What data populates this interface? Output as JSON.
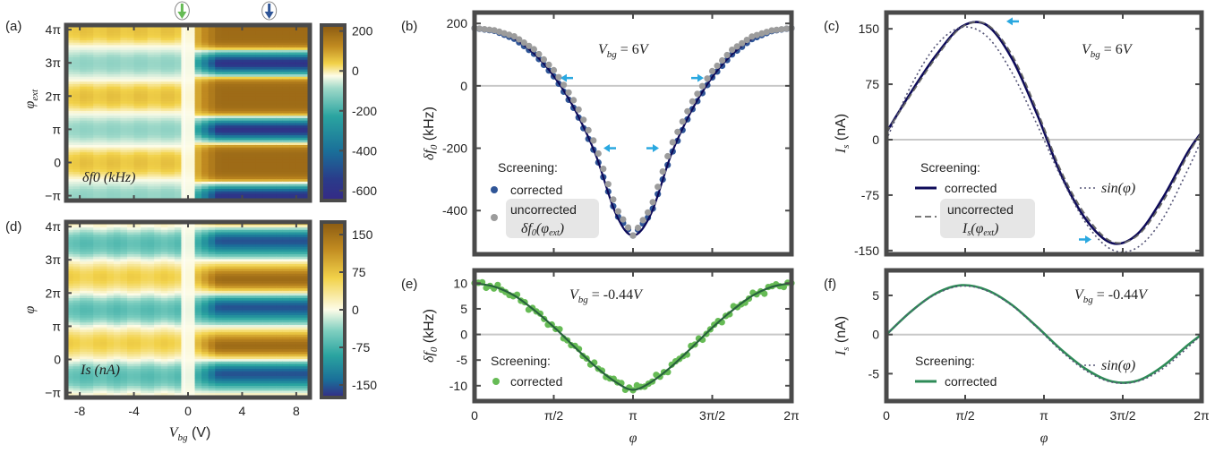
{
  "panels": {
    "a": {
      "label": "(a)",
      "ylabel": "φext",
      "overlay": "δf0 (kHz)"
    },
    "b": {
      "label": "(b)"
    },
    "c": {
      "label": "(c)"
    },
    "d": {
      "label": "(d)",
      "ylabel": "φ",
      "overlay": "Is (nA)"
    },
    "e": {
      "label": "(e)"
    },
    "f": {
      "label": "(f)"
    }
  },
  "colors": {
    "corrected_dark": "#0d0a59",
    "corrected_blue": "#2f5597",
    "uncorrected": "#9c9c9c",
    "green": "#66bb55",
    "green_line": "#2e8b57",
    "arrow": "#2aa8e0",
    "frame": "#4a4a4a",
    "zero_line": "#c8c8c8"
  },
  "chart_data": [
    {
      "panel": "a",
      "type": "heatmap",
      "x_label": "Vbg (V)",
      "y_label": "φext",
      "xlim": [
        -9,
        9
      ],
      "ylim": [
        -3.6,
        13.0
      ],
      "x_ticks": [
        "-8",
        "-4",
        "0",
        "4",
        "8"
      ],
      "x_tick_values": [
        -8,
        -4,
        0,
        4,
        8
      ],
      "y_ticks": [
        "−π",
        "0",
        "π",
        "2π",
        "3π",
        "4π"
      ],
      "y_tick_values": [
        -3.1416,
        0,
        3.1416,
        6.2832,
        9.4248,
        12.5664
      ],
      "colorbar": {
        "ticks": [
          "200",
          "0",
          "-200",
          "-400",
          "-600"
        ],
        "tick_values": [
          200,
          0,
          -200,
          -400,
          -600
        ],
        "range": [
          -650,
          230
        ]
      },
      "markers": [
        {
          "x": -0.44,
          "color": "#66bb55"
        },
        {
          "x": 6,
          "color": "#2f5597"
        }
      ],
      "annotation": "δf0 (kHz)"
    },
    {
      "panel": "d",
      "type": "heatmap",
      "x_label": "Vbg (V)",
      "y_label": "φ",
      "xlim": [
        -9,
        9
      ],
      "ylim": [
        -3.6,
        13.0
      ],
      "x_ticks": [
        "-8",
        "-4",
        "0",
        "4",
        "8"
      ],
      "x_tick_values": [
        -8,
        -4,
        0,
        4,
        8
      ],
      "y_ticks": [
        "−π",
        "0",
        "π",
        "2π",
        "3π",
        "4π"
      ],
      "y_tick_values": [
        -3.1416,
        0,
        3.1416,
        6.2832,
        9.4248,
        12.5664
      ],
      "colorbar": {
        "ticks": [
          "150",
          "75",
          "0",
          "-75",
          "-150"
        ],
        "tick_values": [
          150,
          75,
          0,
          -75,
          -150
        ],
        "range": [
          -175,
          175
        ]
      },
      "annotation": "Is (nA)"
    },
    {
      "panel": "b",
      "type": "line",
      "annotation": "Vbg = 6V",
      "y_label": "δf0 (kHz)",
      "xlim": [
        0,
        6.2832
      ],
      "ylim": [
        -540,
        235
      ],
      "y_ticks": [
        "200",
        "0",
        "-200",
        "-400"
      ],
      "y_tick_values": [
        200,
        0,
        -200,
        -400
      ],
      "legend_title": "Screening:",
      "legend": [
        "corrected",
        "uncorrected",
        "δf0(φext)"
      ],
      "series": [
        {
          "name": "corrected",
          "x": [
            0,
            0.4,
            0.8,
            1.2,
            1.6,
            2.0,
            2.4,
            2.8,
            3.1416,
            3.5,
            3.9,
            4.3,
            4.7,
            5.1,
            5.5,
            5.9,
            6.2832
          ],
          "y": [
            185,
            176,
            150,
            100,
            25,
            -80,
            -220,
            -410,
            -480,
            -410,
            -220,
            -80,
            25,
            100,
            150,
            176,
            185
          ]
        },
        {
          "name": "uncorrected",
          "x": [
            0,
            0.4,
            0.8,
            1.2,
            1.6,
            2.0,
            2.4,
            2.8,
            3.1416,
            3.5,
            3.9,
            4.3,
            4.7,
            5.1,
            5.5,
            5.9,
            6.2832
          ],
          "y": [
            185,
            178,
            158,
            115,
            45,
            -55,
            -190,
            -390,
            -480,
            -390,
            -190,
            -55,
            45,
            115,
            158,
            178,
            185
          ]
        }
      ]
    },
    {
      "panel": "c",
      "type": "line",
      "annotation": "Vbg = 6V",
      "y_label": "Is (nA)",
      "xlim": [
        0,
        6.2832
      ],
      "ylim": [
        -155,
        172
      ],
      "y_ticks": [
        "150",
        "75",
        "0",
        "-75",
        "-150"
      ],
      "y_tick_values": [
        150,
        75,
        0,
        -75,
        -150
      ],
      "legend_title": "Screening:",
      "legend": [
        "corrected",
        "uncorrected",
        "Is(φext)",
        "sin(φ)"
      ],
      "series": [
        {
          "name": "corrected",
          "x": [
            0,
            0.5,
            1.0,
            1.5,
            2.0,
            2.5,
            3.0,
            3.5,
            4.0,
            4.5,
            5.0,
            5.5,
            6.0,
            6.2832
          ],
          "y": [
            10,
            65,
            115,
            153,
            155,
            110,
            35,
            -50,
            -110,
            -140,
            -128,
            -80,
            -18,
            10
          ]
        },
        {
          "name": "uncorrected",
          "x": [
            0,
            0.5,
            1.0,
            1.5,
            2.0,
            2.5,
            3.0,
            3.5,
            4.0,
            4.5,
            5.0,
            5.5,
            6.0,
            6.2832
          ],
          "y": [
            10,
            62,
            112,
            152,
            156,
            115,
            40,
            -45,
            -105,
            -138,
            -130,
            -85,
            -22,
            10
          ]
        },
        {
          "name": "sin(φ)",
          "x": [
            0,
            0.5,
            1.0,
            1.5,
            2.0,
            2.5,
            3.0,
            3.5,
            4.0,
            4.5,
            5.0,
            5.5,
            6.0,
            6.2832
          ],
          "y": [
            0,
            74,
            128,
            152,
            140,
            91,
            21,
            -53,
            -115,
            -149,
            -146,
            -108,
            -42,
            0
          ]
        }
      ]
    },
    {
      "panel": "e",
      "type": "line",
      "annotation": "Vbg = -0.44V",
      "x_label": "φ",
      "y_label": "δf0 (kHz)",
      "xlim": [
        0,
        6.2832
      ],
      "ylim": [
        -13,
        12.5
      ],
      "x_ticks": [
        "0",
        "π/2",
        "π",
        "3π/2",
        "2π"
      ],
      "x_tick_values": [
        0,
        1.5708,
        3.1416,
        4.7124,
        6.2832
      ],
      "y_ticks": [
        "10",
        "5",
        "0",
        "-5",
        "-10"
      ],
      "y_tick_values": [
        10,
        5,
        0,
        -5,
        -10
      ],
      "legend_title": "Screening:",
      "legend": [
        "corrected"
      ],
      "series": [
        {
          "name": "corrected",
          "x": [
            0,
            0.4,
            0.8,
            1.2,
            1.6,
            2.0,
            2.4,
            2.8,
            3.1416,
            3.5,
            3.9,
            4.3,
            4.7,
            5.1,
            5.5,
            5.9,
            6.2832
          ],
          "y": [
            10,
            9.3,
            7.5,
            4.6,
            1.2,
            -2.6,
            -6.3,
            -9.3,
            -10.8,
            -9.3,
            -6.3,
            -2.6,
            1.2,
            4.6,
            7.5,
            9.3,
            10
          ]
        }
      ]
    },
    {
      "panel": "f",
      "type": "line",
      "annotation": "Vbg = -0.44V",
      "x_label": "φ",
      "y_label": "Is (nA)",
      "xlim": [
        0,
        6.2832
      ],
      "ylim": [
        -8.5,
        8.2
      ],
      "x_ticks": [
        "0",
        "π/2",
        "π",
        "3π/2",
        "2π"
      ],
      "x_tick_values": [
        0,
        1.5708,
        3.1416,
        4.7124,
        6.2832
      ],
      "y_ticks": [
        "5",
        "0",
        "-5"
      ],
      "y_tick_values": [
        5,
        0,
        -5
      ],
      "legend_title": "Screening:",
      "legend": [
        "corrected",
        "sin(φ)"
      ],
      "series": [
        {
          "name": "corrected",
          "x": [
            0,
            0.5,
            1.0,
            1.5,
            2.0,
            2.5,
            3.0,
            3.5,
            4.0,
            4.5,
            5.0,
            5.5,
            6.0,
            6.2832
          ],
          "y": [
            0,
            3.0,
            5.3,
            6.3,
            5.7,
            3.8,
            1.0,
            -2.0,
            -4.5,
            -6.0,
            -5.9,
            -4.1,
            -1.4,
            0
          ]
        },
        {
          "name": "sin(φ)",
          "x": [
            0,
            0.5,
            1.0,
            1.5,
            2.0,
            2.5,
            3.0,
            3.5,
            4.0,
            4.5,
            5.0,
            5.5,
            6.0,
            6.2832
          ],
          "y": [
            0,
            3.0,
            5.2,
            6.2,
            5.6,
            3.7,
            0.9,
            -2.2,
            -4.7,
            -6.1,
            -6.0,
            -4.4,
            -1.7,
            0
          ]
        }
      ]
    }
  ]
}
